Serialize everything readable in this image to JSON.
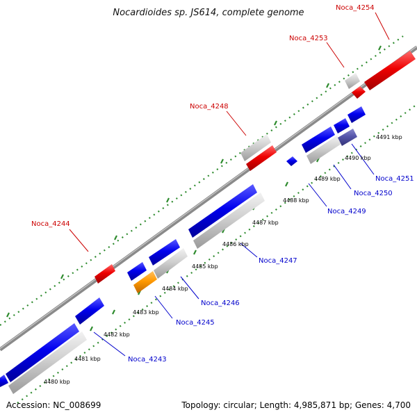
{
  "title": "Nocardioides sp. JS614, complete genome",
  "footer": {
    "accession": "Accession: NC_008699",
    "topology": "Topology: circular; Length: 4,985,871 bp; Genes: 4,700"
  },
  "colors": {
    "forward_strand_label": "#cc0000",
    "reverse_strand_label": "#0000cc",
    "gene_blue": "#0000ee",
    "gene_red": "#ee0000",
    "gene_grey": "#c8c8c8",
    "gene_orange": "#ff9900",
    "gene_purple": "#5555aa",
    "backbone": "#888888",
    "tick_green": "#2e8b2e"
  },
  "kbp_ticks": [
    "4480 kbp",
    "4481 kbp",
    "4482 kbp",
    "4483 kbp",
    "4484 kbp",
    "4485 kbp",
    "4486 kbp",
    "4487 kbp",
    "4488 kbp",
    "4489 kbp",
    "4490 kbp",
    "4491 kbp"
  ],
  "gene_labels_forward": [
    "Noca_4244",
    "Noca_4248",
    "Noca_4253",
    "Noca_4254"
  ],
  "gene_labels_reverse": [
    "Noca_4243",
    "Noca_4245",
    "Noca_4246",
    "Noca_4247",
    "Noca_4249",
    "Noca_4250",
    "Noca_4251"
  ]
}
